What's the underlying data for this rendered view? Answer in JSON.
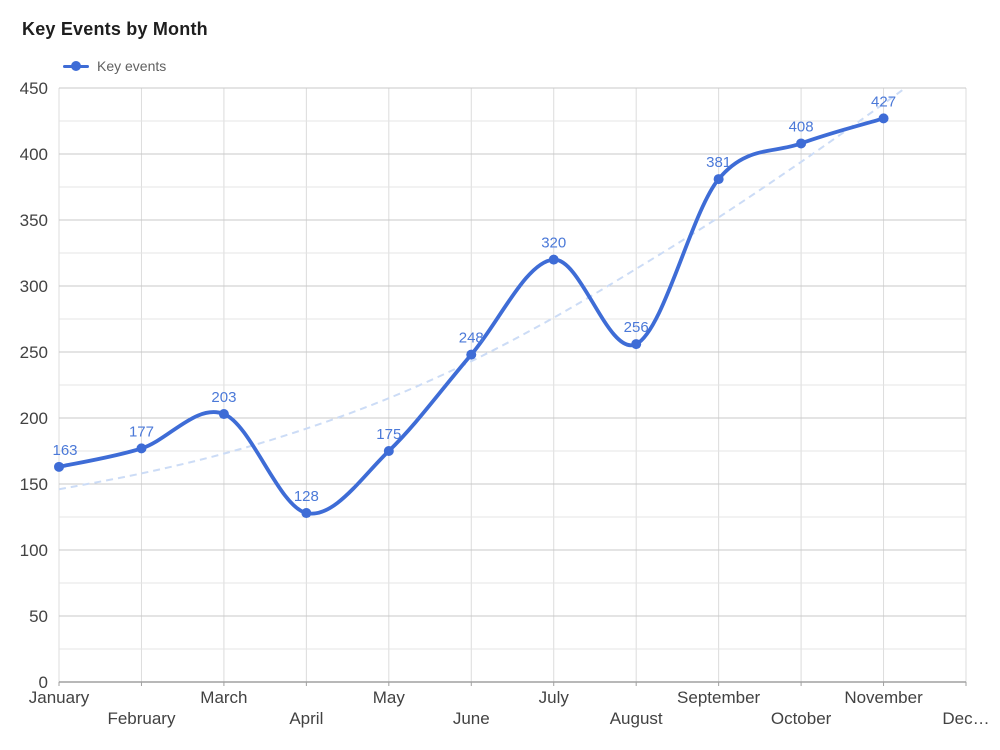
{
  "title": "Key Events by Month",
  "legend": {
    "label": "Key events"
  },
  "chart_data": {
    "type": "line",
    "title": "Key Events by Month",
    "categories": [
      "January",
      "February",
      "March",
      "April",
      "May",
      "June",
      "July",
      "August",
      "September",
      "October",
      "November",
      "Dec…"
    ],
    "series": [
      {
        "name": "Key events",
        "values": [
          163,
          177,
          203,
          128,
          175,
          248,
          320,
          256,
          381,
          408,
          427
        ],
        "color": "#3e6cd6",
        "smooth": true,
        "point_radius": 5,
        "line_width": 3.8,
        "data_labels": [
          163,
          177,
          203,
          128,
          175,
          248,
          320,
          256,
          381,
          408,
          427
        ],
        "data_label_color": "#4b79d8"
      }
    ],
    "trendline": {
      "series": "Key events",
      "style": "dashed",
      "color": "#ccdcf6",
      "values": [
        146,
        158,
        173,
        192,
        215,
        243,
        276,
        313,
        352,
        394,
        438,
        484
      ]
    },
    "xlabel": "",
    "ylabel": "",
    "ylim": [
      0,
      450
    ],
    "yticks": [
      0,
      50,
      100,
      150,
      200,
      250,
      300,
      350,
      400,
      450
    ],
    "minor_ytick_step": 25,
    "grid": true,
    "legend_position": "top-left",
    "colors": {
      "major_grid": "#c9c9c9",
      "minor_grid": "#e4e4e4",
      "vertical_grid": "#dcdcdc",
      "axis_line": "#a0a0a0",
      "axis_text": "#424242"
    }
  }
}
